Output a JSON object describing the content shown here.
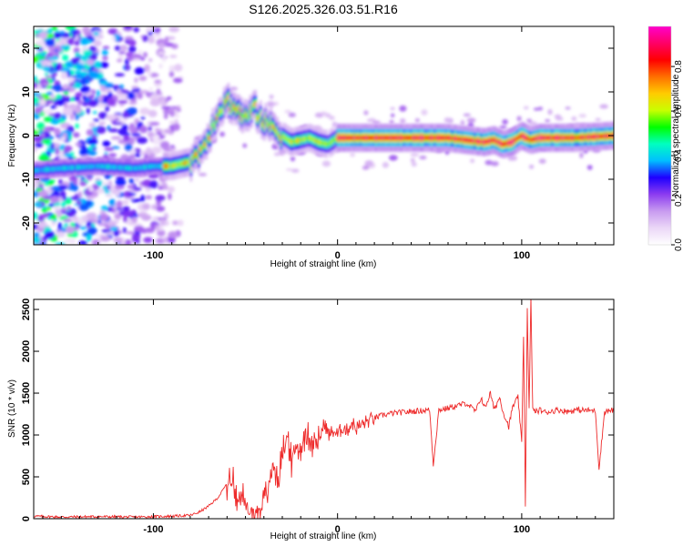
{
  "title": "S126.2025.326.03.51.R16",
  "colors": {
    "snr_line": "#ee2a2a",
    "axis": "#000000",
    "background": "#ffffff"
  },
  "chart_data": [
    {
      "type": "heatmap",
      "name": "spectrogram",
      "xlabel": "Height of straight line (km)",
      "ylabel": "Frequency (Hz)",
      "xlim": [
        -165,
        150
      ],
      "ylim": [
        -25,
        25
      ],
      "xticks": [
        -100,
        0,
        100
      ],
      "xtick_labels": [
        "-100",
        "0",
        "100"
      ],
      "yticks": [
        -20,
        -10,
        0,
        10,
        20
      ],
      "ytick_labels": [
        "-20",
        "-10",
        "0",
        "10",
        "20"
      ],
      "ridge": {
        "description": "frequency of peak spectral amplitude vs height",
        "x": [
          -165,
          -150,
          -130,
          -110,
          -100,
          -90,
          -85,
          -80,
          -75,
          -70,
          -65,
          -60,
          -55,
          -50,
          -45,
          -40,
          -35,
          -30,
          -25,
          -20,
          -15,
          -10,
          -5,
          0,
          20,
          40,
          60,
          70,
          80,
          85,
          90,
          95,
          100,
          105,
          110,
          130,
          150
        ],
        "y": [
          -8,
          -7.5,
          -7,
          -7.5,
          -7,
          -7,
          -6.5,
          -6,
          -4,
          0,
          5,
          8,
          6,
          4,
          6,
          3,
          2,
          0,
          -1.5,
          -1,
          -0.5,
          -1.5,
          -2,
          -0.5,
          -0.5,
          -0.5,
          -0.5,
          -1,
          -1.5,
          -1,
          -2,
          -1.5,
          0,
          -1,
          -0.5,
          -0.5,
          0
        ]
      },
      "colorbar": {
        "label": "Normalized spectral amplitude",
        "range": [
          0,
          0.98
        ],
        "ticks": [
          0.0,
          0.2,
          0.4,
          0.6,
          0.8
        ],
        "tick_labels": [
          "0.0",
          "0.2",
          "0.4",
          "0.6",
          "0.8"
        ],
        "colormap": [
          "#ffffff",
          "#ebd7f7",
          "#c89bf0",
          "#8c3cf0",
          "#1e00ff",
          "#00bfff",
          "#00ffc0",
          "#00ff00",
          "#c8ff00",
          "#ffcc00",
          "#ff7000",
          "#ff0000",
          "#ff0066",
          "#ff00cc"
        ]
      }
    },
    {
      "type": "line",
      "name": "snr",
      "xlabel": "Height of straight line (km)",
      "ylabel": "SNR (10 * v/v)",
      "xlim": [
        -165,
        150
      ],
      "ylim": [
        0,
        2620
      ],
      "xticks": [
        -100,
        0,
        100
      ],
      "xtick_labels": [
        "-100",
        "0",
        "100"
      ],
      "yticks": [
        0,
        500,
        1000,
        1500,
        2000,
        2500
      ],
      "ytick_labels": [
        "0",
        "500",
        "1000",
        "1500",
        "2000",
        "2500"
      ],
      "series": [
        {
          "name": "SNR",
          "color": "#ee2a2a",
          "x": [
            -165,
            -150,
            -130,
            -110,
            -100,
            -90,
            -80,
            -75,
            -70,
            -65,
            -60,
            -58,
            -55,
            -52,
            -50,
            -47,
            -45,
            -42,
            -40,
            -37,
            -35,
            -32,
            -30,
            -27,
            -25,
            -22,
            -20,
            -17,
            -15,
            -12,
            -10,
            -7,
            -5,
            -2,
            0,
            3,
            5,
            8,
            10,
            15,
            20,
            25,
            30,
            40,
            50,
            52,
            55,
            60,
            65,
            70,
            75,
            78,
            80,
            83,
            85,
            88,
            90,
            93,
            95,
            98,
            100,
            101,
            102,
            103,
            104,
            105,
            106,
            108,
            110,
            113,
            115,
            120,
            125,
            130,
            140,
            142,
            145,
            150
          ],
          "y": [
            30,
            20,
            25,
            20,
            25,
            30,
            40,
            80,
            150,
            250,
            420,
            520,
            300,
            250,
            150,
            80,
            50,
            150,
            200,
            400,
            650,
            500,
            750,
            1000,
            650,
            900,
            800,
            1100,
            850,
            1050,
            950,
            1150,
            1000,
            1050,
            1000,
            1100,
            1050,
            1150,
            1080,
            1150,
            1200,
            1240,
            1260,
            1280,
            1300,
            650,
            1300,
            1320,
            1350,
            1380,
            1280,
            1450,
            1320,
            1500,
            1300,
            1450,
            1270,
            1100,
            1330,
            1450,
            900,
            2200,
            150,
            2500,
            1300,
            2620,
            1300,
            1280,
            1300,
            1270,
            1280,
            1300,
            1280,
            1300,
            1290,
            600,
            1280,
            1300
          ]
        }
      ]
    }
  ]
}
